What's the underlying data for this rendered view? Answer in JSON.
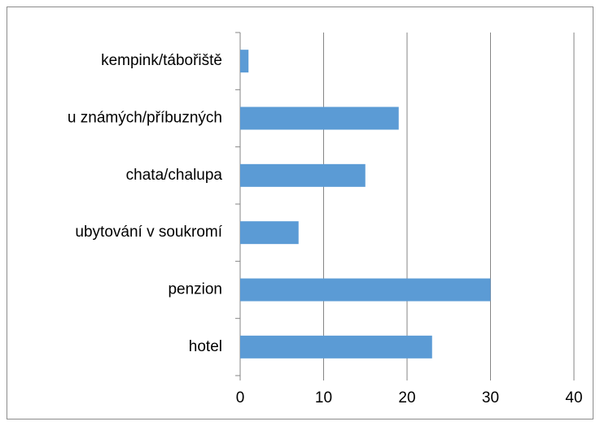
{
  "chart_data": {
    "type": "bar",
    "orientation": "horizontal",
    "categories": [
      "kempink/tábořiště",
      "u známých/příbuzných",
      "chata/chalupa",
      "ubytování v soukromí",
      "penzion",
      "hotel"
    ],
    "values": [
      1,
      19,
      15,
      7,
      30,
      23
    ],
    "color": "#5b9bd5",
    "xlim": [
      0,
      40
    ],
    "xticks": [
      0,
      10,
      20,
      30,
      40
    ],
    "grid": true
  }
}
